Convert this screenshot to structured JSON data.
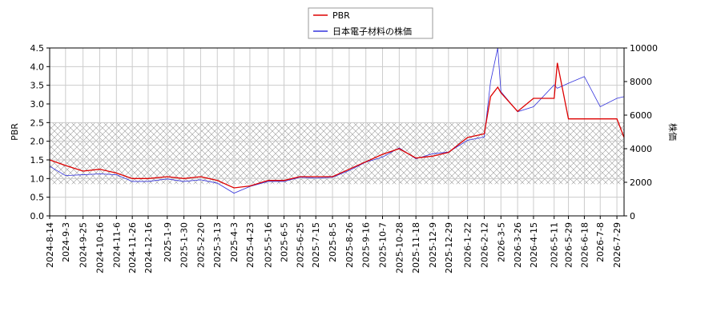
{
  "chart_data": {
    "type": "line",
    "x": [
      "2024-8-14",
      "2024-9-3",
      "2024-9-25",
      "2024-10-16",
      "2024-11-6",
      "2024-11-26",
      "2024-12-16",
      "2025-1-9",
      "2025-1-30",
      "2025-2-20",
      "2025-3-13",
      "2025-4-3",
      "2025-4-23",
      "2025-5-16",
      "2025-6-5",
      "2025-6-25",
      "2025-7-15",
      "2025-8-5",
      "2025-8-26",
      "2025-9-16",
      "2025-10-7",
      "2025-10-28",
      "2025-11-18",
      "2025-12-9",
      "2025-12-29",
      "2026-1-22",
      "2026-2-12",
      "2026-2-20",
      "2026-3-1",
      "2026-3-5",
      "2026-3-26",
      "2026-4-15",
      "2026-5-11",
      "2026-5-15",
      "2026-5-29",
      "2026-6-18",
      "2026-7-8",
      "2026-7-29",
      "2026-8-7"
    ],
    "series": [
      {
        "name": "PBR",
        "color": "#dd0000",
        "values": [
          1.5,
          1.35,
          1.2,
          1.25,
          1.15,
          1.0,
          1.0,
          1.05,
          1.0,
          1.05,
          0.95,
          0.75,
          0.8,
          0.95,
          0.95,
          1.05,
          1.05,
          1.05,
          1.25,
          1.45,
          1.65,
          1.8,
          1.55,
          1.6,
          1.7,
          2.1,
          2.2,
          3.2,
          3.45,
          3.3,
          2.8,
          3.15,
          3.15,
          4.1,
          2.6,
          2.6,
          2.6,
          2.6,
          2.1
        ]
      },
      {
        "name": "日本電子材料の株価",
        "color": "#3333dd",
        "axis": "y2",
        "values": [
          2950,
          2400,
          2450,
          2500,
          2450,
          2050,
          2050,
          2200,
          2050,
          2150,
          1950,
          1350,
          1750,
          2050,
          2050,
          2300,
          2250,
          2300,
          2700,
          3200,
          3500,
          4050,
          3400,
          3700,
          3800,
          4500,
          4700,
          8000,
          10000,
          7400,
          6200,
          6500,
          7800,
          7600,
          7900,
          8300,
          6500,
          7000,
          7100
        ]
      }
    ],
    "y_label": "PBR",
    "y2_label": "株価",
    "xlim": [
      "2024-8-14",
      "2026-8-7"
    ],
    "xticks": [
      "2024-8-14",
      "2024-9-3",
      "2024-9-25",
      "2024-10-16",
      "2024-11-6",
      "2024-11-26",
      "2024-12-16",
      "2025-1-9",
      "2025-1-30",
      "2025-2-20",
      "2025-3-13",
      "2025-4-3",
      "2025-4-23",
      "2025-5-16",
      "2025-6-5",
      "2025-6-25",
      "2025-7-15",
      "2025-8-5",
      "2025-8-26",
      "2025-9-16",
      "2025-10-7",
      "2025-10-28",
      "2025-11-18",
      "2025-12-9",
      "2025-12-29",
      "2026-1-22",
      "2026-2-12",
      "2026-3-5",
      "2026-3-26",
      "2026-4-15",
      "2026-5-11",
      "2026-5-29",
      "2026-6-18",
      "2026-7-8",
      "2026-7-29"
    ],
    "ylim": [
      0,
      4.5
    ],
    "yticks": [
      {
        "value": 0,
        "label": "0.0"
      },
      {
        "value": 0.5,
        "label": "0.5"
      },
      {
        "value": 1,
        "label": "1.0"
      },
      {
        "value": 1.5,
        "label": "1.5"
      },
      {
        "value": 2,
        "label": "2.0"
      },
      {
        "value": 2.5,
        "label": "2.5"
      },
      {
        "value": 3,
        "label": "3.0"
      },
      {
        "value": 3.5,
        "label": "3.5"
      },
      {
        "value": 4,
        "label": "4.0"
      },
      {
        "value": 4.5,
        "label": "4.5"
      }
    ],
    "y2lim": [
      0,
      10000
    ],
    "y2ticks": [
      0,
      2000,
      4000,
      6000,
      8000,
      10000
    ],
    "band": [
      0.85,
      2.5
    ],
    "grid": true,
    "legend": "top"
  }
}
